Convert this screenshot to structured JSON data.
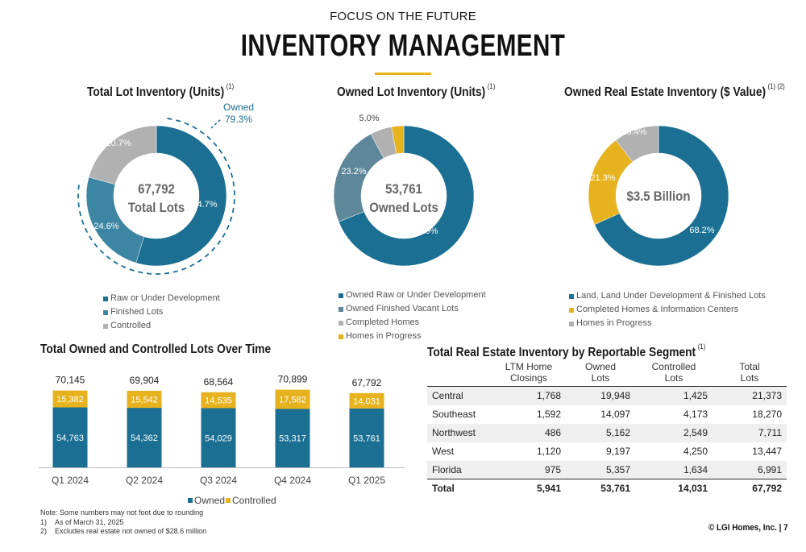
{
  "header": {
    "kicker": "FOCUS ON THE FUTURE",
    "title": "INVENTORY MANAGEMENT",
    "accent_color": "#e8b318"
  },
  "colors": {
    "dark_blue": "#1b6f93",
    "mid_blue": "#3d86a3",
    "slate_blue": "#5f879a",
    "gray": "#b1b1b1",
    "gold": "#e6b21e"
  },
  "chart_data": [
    {
      "type": "pie",
      "title": "Total Lot Inventory (Units)",
      "title_note": "(1)",
      "center_value": "67,792",
      "center_label": "Total Lots",
      "callout": {
        "label": "Owned",
        "value": "79.3%"
      },
      "slices": [
        {
          "name": "Raw or Under Development",
          "value": 54.7,
          "label": "54.7%",
          "color": "#1b6f93"
        },
        {
          "name": "Finished Lots",
          "value": 24.6,
          "label": "24.6%",
          "color": "#3d86a3"
        },
        {
          "name": "Controlled",
          "value": 20.7,
          "label": "20.7%",
          "color": "#b1b1b1"
        }
      ]
    },
    {
      "type": "pie",
      "title": "Owned Lot Inventory (Units)",
      "title_note": "(1)",
      "center_value": "53,761",
      "center_label": "Owned Lots",
      "slices": [
        {
          "name": "Owned Raw or Under Development",
          "value": 68.9,
          "label": "68.9%",
          "color": "#1b6f93"
        },
        {
          "name": "Owned Finished Vacant Lots",
          "value": 23.2,
          "label": "23.2%",
          "color": "#5f879a"
        },
        {
          "name": "Completed Homes",
          "value": 5.0,
          "label": "5.0%",
          "color": "#b1b1b1"
        },
        {
          "name": "Homes in Progress",
          "value": 2.8,
          "label": "2.8%",
          "color": "#e6b21e"
        }
      ]
    },
    {
      "type": "pie",
      "title": "Owned Real Estate Inventory ($ Value)",
      "title_note": "(1) (2)",
      "center_value": "$3.5 Billion",
      "center_label": "",
      "slices": [
        {
          "name": "Land, Land Under Development & Finished Lots",
          "value": 68.2,
          "label": "68.2%",
          "color": "#1b6f93"
        },
        {
          "name": "Completed Homes & Information Centers",
          "value": 21.3,
          "label": "21.3%",
          "color": "#e6b21e"
        },
        {
          "name": "Homes in Progress",
          "value": 10.4,
          "label": "10.4%",
          "color": "#b1b1b1"
        }
      ]
    },
    {
      "type": "bar",
      "stacked": true,
      "title": "Total Owned and Controlled Lots Over Time",
      "categories": [
        "Q1 2024",
        "Q2 2024",
        "Q3 2024",
        "Q4 2024",
        "Q1 2025"
      ],
      "totals": [
        "70,145",
        "69,904",
        "68,564",
        "70,899",
        "67,792"
      ],
      "series": [
        {
          "name": "Owned",
          "color": "#1b6f93",
          "values": [
            54763,
            54362,
            54029,
            53317,
            53761
          ],
          "labels": [
            "54,763",
            "54,362",
            "54,029",
            "53,317",
            "53,761"
          ]
        },
        {
          "name": "Controlled",
          "color": "#e6b21e",
          "values": [
            15382,
            15542,
            14535,
            17582,
            14031
          ],
          "labels": [
            "15,382",
            "15,542",
            "14,535",
            "17,582",
            "14,031"
          ]
        }
      ],
      "legend": "bottom"
    },
    {
      "type": "table",
      "title": "Total Real Estate Inventory by Reportable Segment",
      "title_note": "(1)",
      "columns": [
        {
          "l1": "",
          "l2": ""
        },
        {
          "l1": "LTM Home",
          "l2": "Closings"
        },
        {
          "l1": "Owned",
          "l2": "Lots"
        },
        {
          "l1": "Controlled",
          "l2": "Lots"
        },
        {
          "l1": "Total",
          "l2": "Lots"
        }
      ],
      "rows": [
        [
          "Central",
          "1,768",
          "19,948",
          "1,425",
          "21,373"
        ],
        [
          "Southeast",
          "1,592",
          "14,097",
          "4,173",
          "18,270"
        ],
        [
          "Northwest",
          "486",
          "5,162",
          "2,549",
          "7,711"
        ],
        [
          "West",
          "1,120",
          "9,197",
          "4,250",
          "13,447"
        ],
        [
          "Florida",
          "975",
          "5,357",
          "1,634",
          "6,991"
        ]
      ],
      "total_row": [
        "Total",
        "5,941",
        "53,761",
        "14,031",
        "67,792"
      ]
    }
  ],
  "notes": {
    "lead": "Note: Some numbers may not foot due to rounding",
    "items": [
      {
        "num": "1)",
        "text": "As of March 31, 2025"
      },
      {
        "num": "2)",
        "text": "Excludes real estate not owned of $28.6 million"
      }
    ]
  },
  "footer": {
    "copyright": "© LGI Homes, Inc.",
    "page": "7"
  }
}
